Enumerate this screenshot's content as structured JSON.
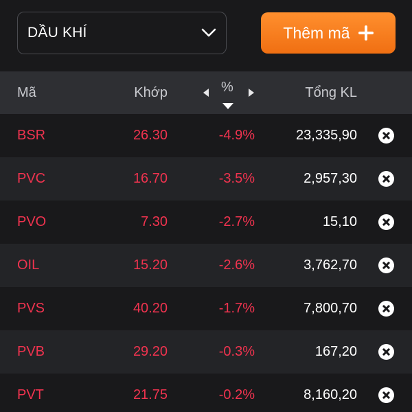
{
  "filter": {
    "selected": "DẦU KHÍ",
    "icon": "chevron-down-icon"
  },
  "add_button": {
    "label": "Thêm mã",
    "icon": "plus-icon"
  },
  "table": {
    "headers": {
      "code": "Mã",
      "price": "Khớp",
      "percent": "%",
      "total_volume": "Tổng KL"
    },
    "rows": [
      {
        "code": "BSR",
        "price": "26.30",
        "percent": "-4.9%",
        "total_volume": "23,335,90"
      },
      {
        "code": "PVC",
        "price": "16.70",
        "percent": "-3.5%",
        "total_volume": "2,957,30"
      },
      {
        "code": "PVO",
        "price": "7.30",
        "percent": "-2.7%",
        "total_volume": "15,10"
      },
      {
        "code": "OIL",
        "price": "15.20",
        "percent": "-2.6%",
        "total_volume": "3,762,70"
      },
      {
        "code": "PVS",
        "price": "40.20",
        "percent": "-1.7%",
        "total_volume": "7,800,70"
      },
      {
        "code": "PVB",
        "price": "29.20",
        "percent": "-0.3%",
        "total_volume": "167,20"
      },
      {
        "code": "PVT",
        "price": "21.75",
        "percent": "-0.2%",
        "total_volume": "8,160,20"
      }
    ]
  },
  "colors": {
    "background": "#19191b",
    "header_background": "#2e2f33",
    "decline": "#f0334f",
    "accent": "#f57b1c",
    "text": "#ffffff"
  }
}
